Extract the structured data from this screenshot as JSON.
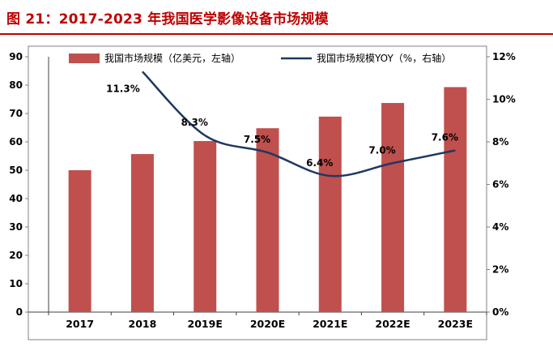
{
  "header": {
    "title": "图 21：2017-2023 年我国医学影像设备市场规模"
  },
  "colors": {
    "title_red": "#C00000",
    "bar_red": "#C0504D",
    "line_navy": "#1F3864",
    "frame_gray": "#808080",
    "axis_dark": "#404040"
  },
  "chart_data": {
    "type": "bar",
    "subtype": "combo-bar-line",
    "title": "2017-2023 年我国医学影像设备市场规模",
    "categories": [
      "2017",
      "2018",
      "2019E",
      "2020E",
      "2021E",
      "2022E",
      "2023E"
    ],
    "series": [
      {
        "name": "我国市场规模（亿美元，左轴）",
        "type": "bar",
        "axis": "left",
        "color": "#C0504D",
        "values": [
          50,
          55.7,
          60.3,
          64.8,
          68.9,
          73.7,
          79.3
        ]
      },
      {
        "name": "我国市场规模YOY（%，右轴）",
        "type": "line",
        "axis": "right",
        "color": "#1F3864",
        "values": [
          null,
          11.3,
          8.3,
          7.5,
          6.4,
          7.0,
          7.6
        ],
        "labels": [
          null,
          "11.3%",
          "8.3%",
          "7.5%",
          "6.4%",
          "7.0%",
          "7.6%"
        ]
      }
    ],
    "left_axis": {
      "min": 0,
      "max": 90,
      "step": 10,
      "ticks": [
        "0",
        "10",
        "20",
        "30",
        "40",
        "50",
        "60",
        "70",
        "80",
        "90"
      ]
    },
    "right_axis": {
      "min": 0,
      "max": 12,
      "step": 2,
      "ticks": [
        "0%",
        "2%",
        "4%",
        "6%",
        "8%",
        "10%",
        "12%"
      ]
    },
    "legend_position": "top",
    "grid": false
  }
}
